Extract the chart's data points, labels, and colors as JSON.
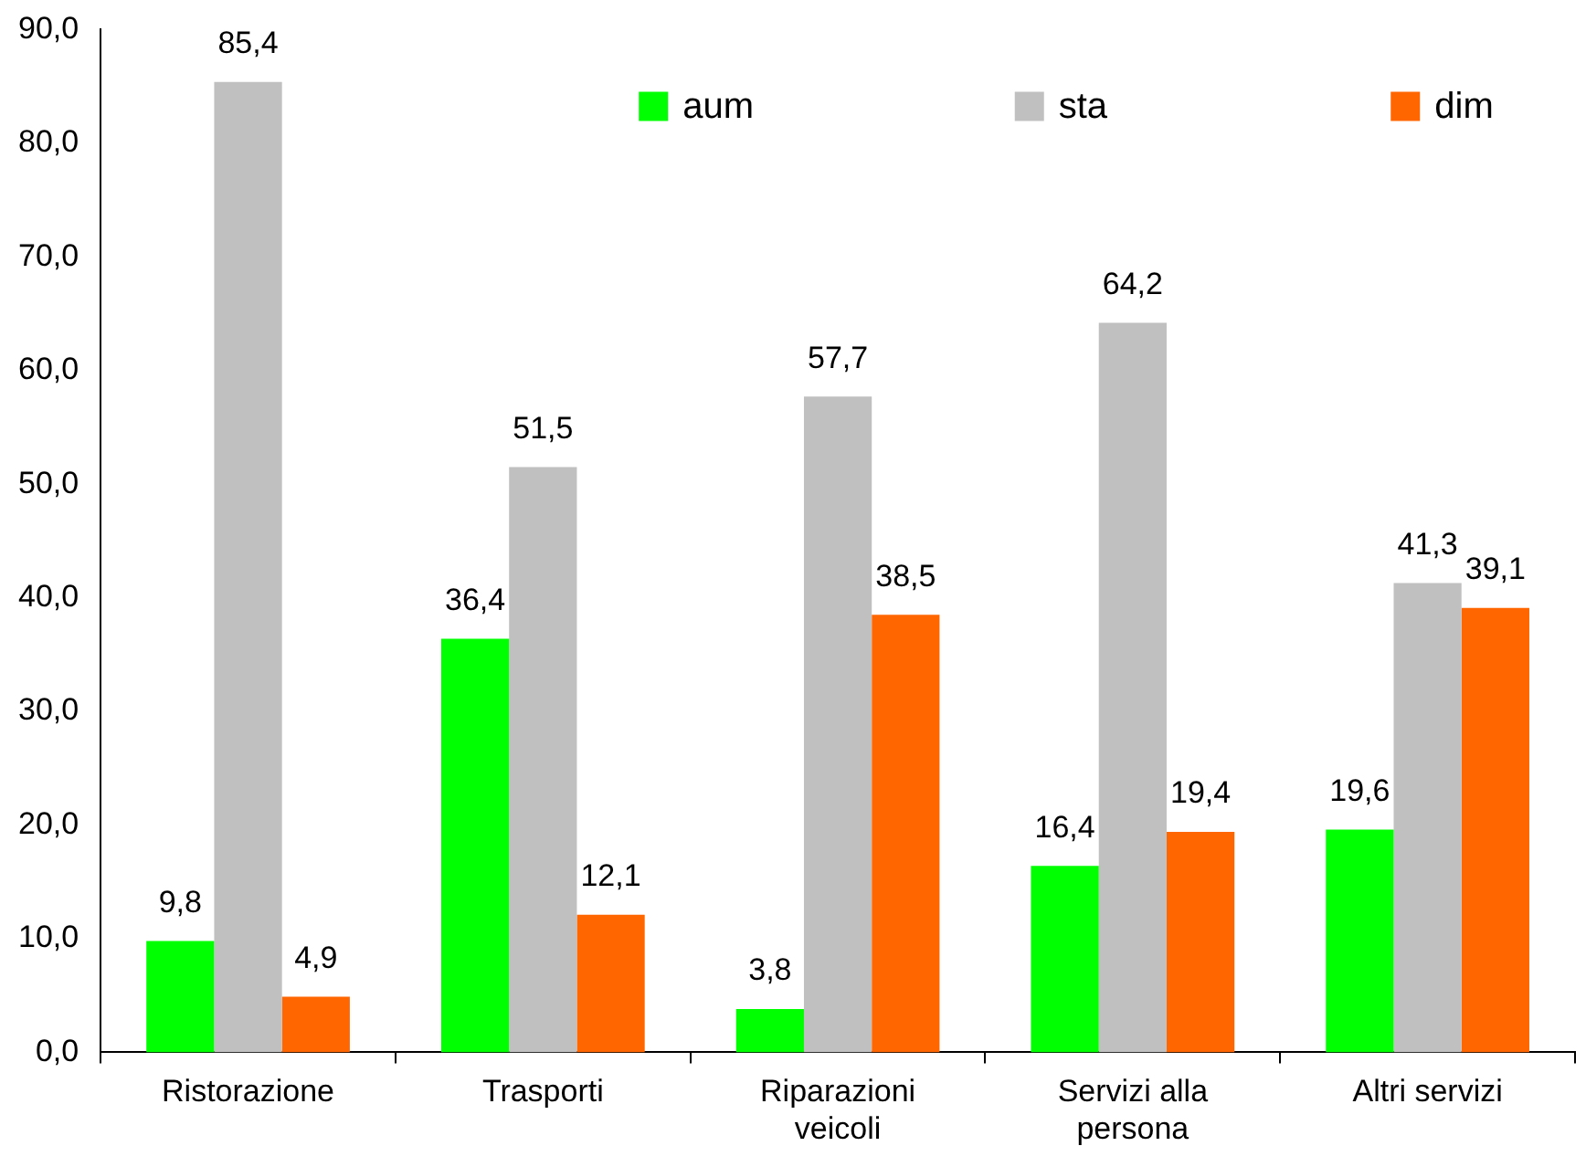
{
  "chart_data": {
    "type": "bar",
    "categories": [
      "Ristorazione",
      "Trasporti",
      "Riparazioni veicoli",
      "Servizi alla persona",
      "Altri servizi"
    ],
    "series": [
      {
        "name": "aum",
        "color": "#00ff00",
        "values": [
          9.8,
          36.4,
          3.8,
          16.4,
          19.6
        ],
        "value_labels": [
          "9,8",
          "36,4",
          "3,8",
          "16,4",
          "19,6"
        ]
      },
      {
        "name": "sta",
        "color": "#c0c0c0",
        "values": [
          85.4,
          51.5,
          57.7,
          64.2,
          41.3
        ],
        "value_labels": [
          "85,4",
          "51,5",
          "57,7",
          "64,2",
          "41,3"
        ]
      },
      {
        "name": "dim",
        "color": "#ff6600",
        "values": [
          4.9,
          12.1,
          38.5,
          19.4,
          39.1
        ],
        "value_labels": [
          "4,9",
          "12,1",
          "38,5",
          "19,4",
          "39,1"
        ]
      }
    ],
    "ylim": [
      0,
      90
    ],
    "yticks": [
      {
        "value": 0,
        "label": "0,0"
      },
      {
        "value": 10,
        "label": "10,0"
      },
      {
        "value": 20,
        "label": "20,0"
      },
      {
        "value": 30,
        "label": "30,0"
      },
      {
        "value": 40,
        "label": "40,0"
      },
      {
        "value": 50,
        "label": "50,0"
      },
      {
        "value": 60,
        "label": "60,0"
      },
      {
        "value": 70,
        "label": "70,0"
      },
      {
        "value": 80,
        "label": "80,0"
      },
      {
        "value": 90,
        "label": "90,0"
      }
    ],
    "grid": false,
    "legend": "top"
  }
}
